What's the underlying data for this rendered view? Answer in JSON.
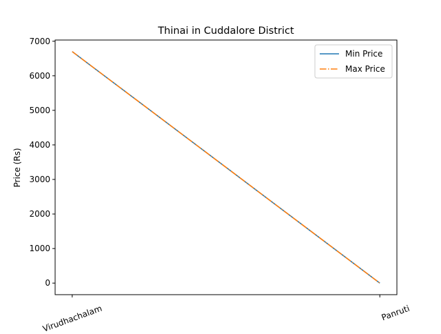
{
  "chart_data": {
    "type": "line",
    "title": "Thinai in Cuddalore District",
    "xlabel": "",
    "ylabel": "Price (Rs)",
    "categories": [
      "Virudhachalam",
      "Panruti"
    ],
    "series": [
      {
        "name": "Min Price",
        "values": [
          6700,
          0
        ],
        "color": "#1f77b4",
        "style": "solid"
      },
      {
        "name": "Max Price",
        "values": [
          6700,
          0
        ],
        "color": "#ff7f0e",
        "style": "dashdot"
      }
    ],
    "ylim": [
      -335,
      7035
    ],
    "yticks": [
      0,
      1000,
      2000,
      3000,
      4000,
      5000,
      6000,
      7000
    ],
    "grid": false,
    "legend": "top-right"
  }
}
